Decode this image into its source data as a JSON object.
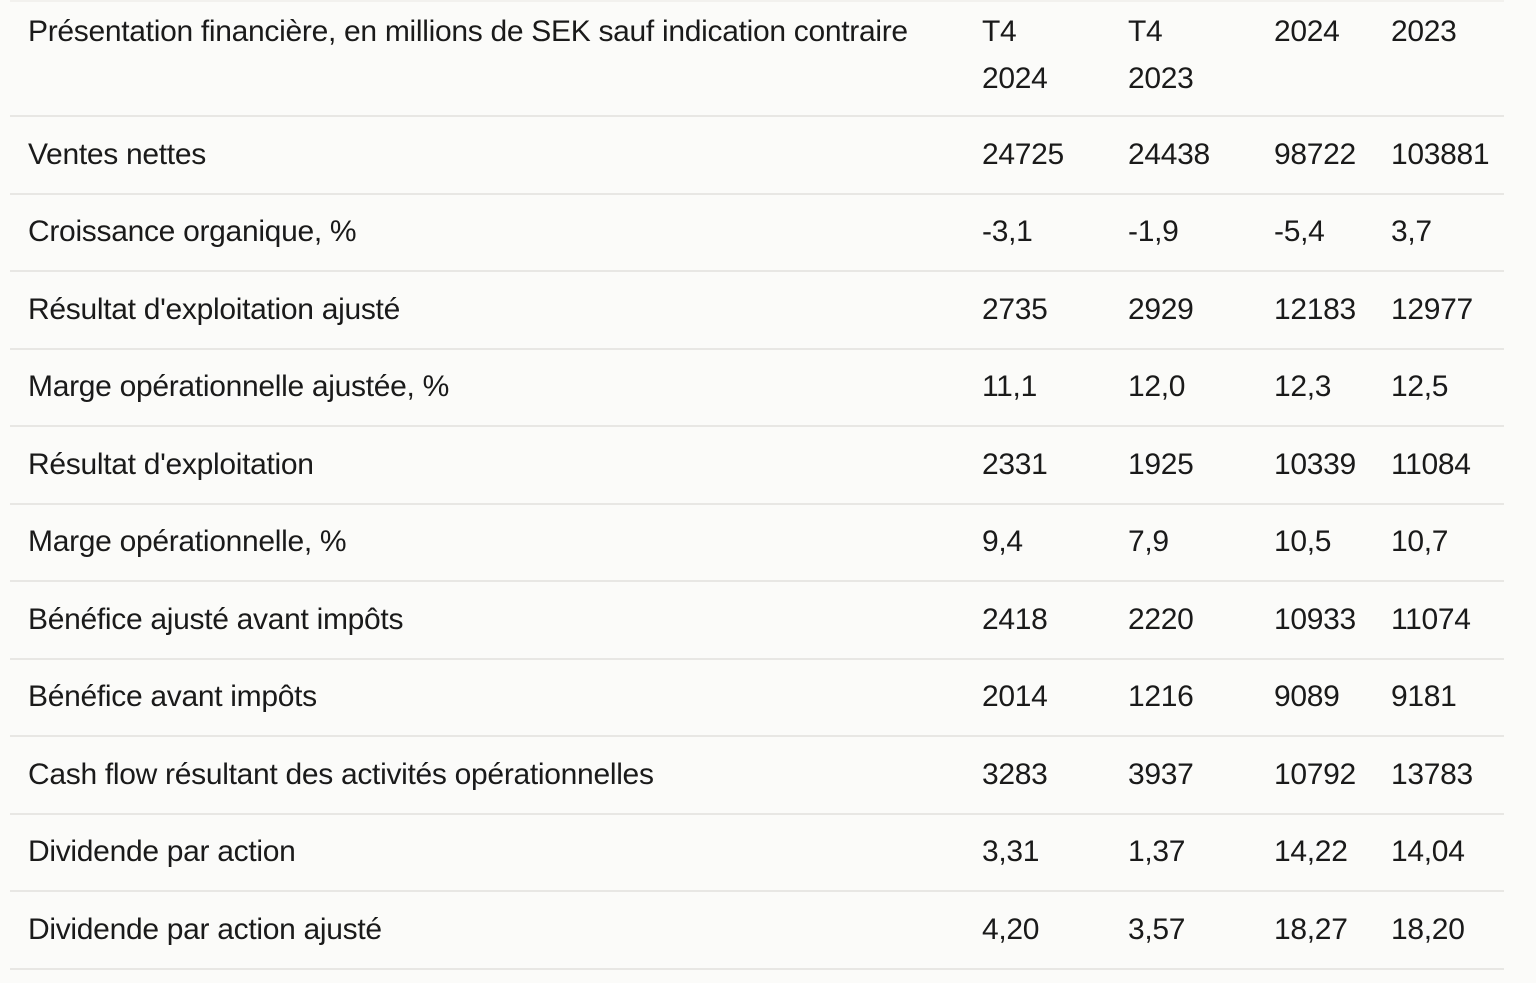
{
  "table": {
    "header": {
      "label": "Présentation financière, en millions de SEK sauf indication contraire",
      "columns": [
        "T4\n2024",
        "T4\n2023",
        "2024",
        "2023"
      ]
    },
    "rows": [
      {
        "label": "Ventes nettes",
        "values": [
          "24725",
          "24438",
          "98722",
          "103881"
        ]
      },
      {
        "label": "Croissance organique, %",
        "values": [
          "-3,1",
          "-1,9",
          "-5,4",
          "3,7"
        ]
      },
      {
        "label": "Résultat d'exploitation ajusté",
        "values": [
          "2735",
          "2929",
          "12183",
          "12977"
        ]
      },
      {
        "label": "Marge opérationnelle ajustée, %",
        "values": [
          "11,1",
          "12,0",
          "12,3",
          "12,5"
        ]
      },
      {
        "label": "Résultat d'exploitation",
        "values": [
          "2331",
          "1925",
          "10339",
          "11084"
        ]
      },
      {
        "label": "Marge opérationnelle, %",
        "values": [
          "9,4",
          "7,9",
          "10,5",
          "10,7"
        ]
      },
      {
        "label": "Bénéfice ajusté avant impôts",
        "values": [
          "2418",
          "2220",
          "10933",
          "11074"
        ]
      },
      {
        "label": "Bénéfice avant impôts",
        "values": [
          "2014",
          "1216",
          "9089",
          "9181"
        ]
      },
      {
        "label": "Cash flow résultant des activités opérationnelles",
        "values": [
          "3283",
          "3937",
          "10792",
          "13783"
        ]
      },
      {
        "label": "Dividende par action",
        "values": [
          "3,31",
          "1,37",
          "14,22",
          "14,04"
        ]
      },
      {
        "label": "Dividende par action ajusté",
        "values": [
          "4,20",
          "3,57",
          "18,27",
          "18,20"
        ]
      }
    ],
    "colors": {
      "text": "#1a1a1a",
      "divider": "#e8e7e4",
      "background": "#fbfbf9"
    }
  }
}
